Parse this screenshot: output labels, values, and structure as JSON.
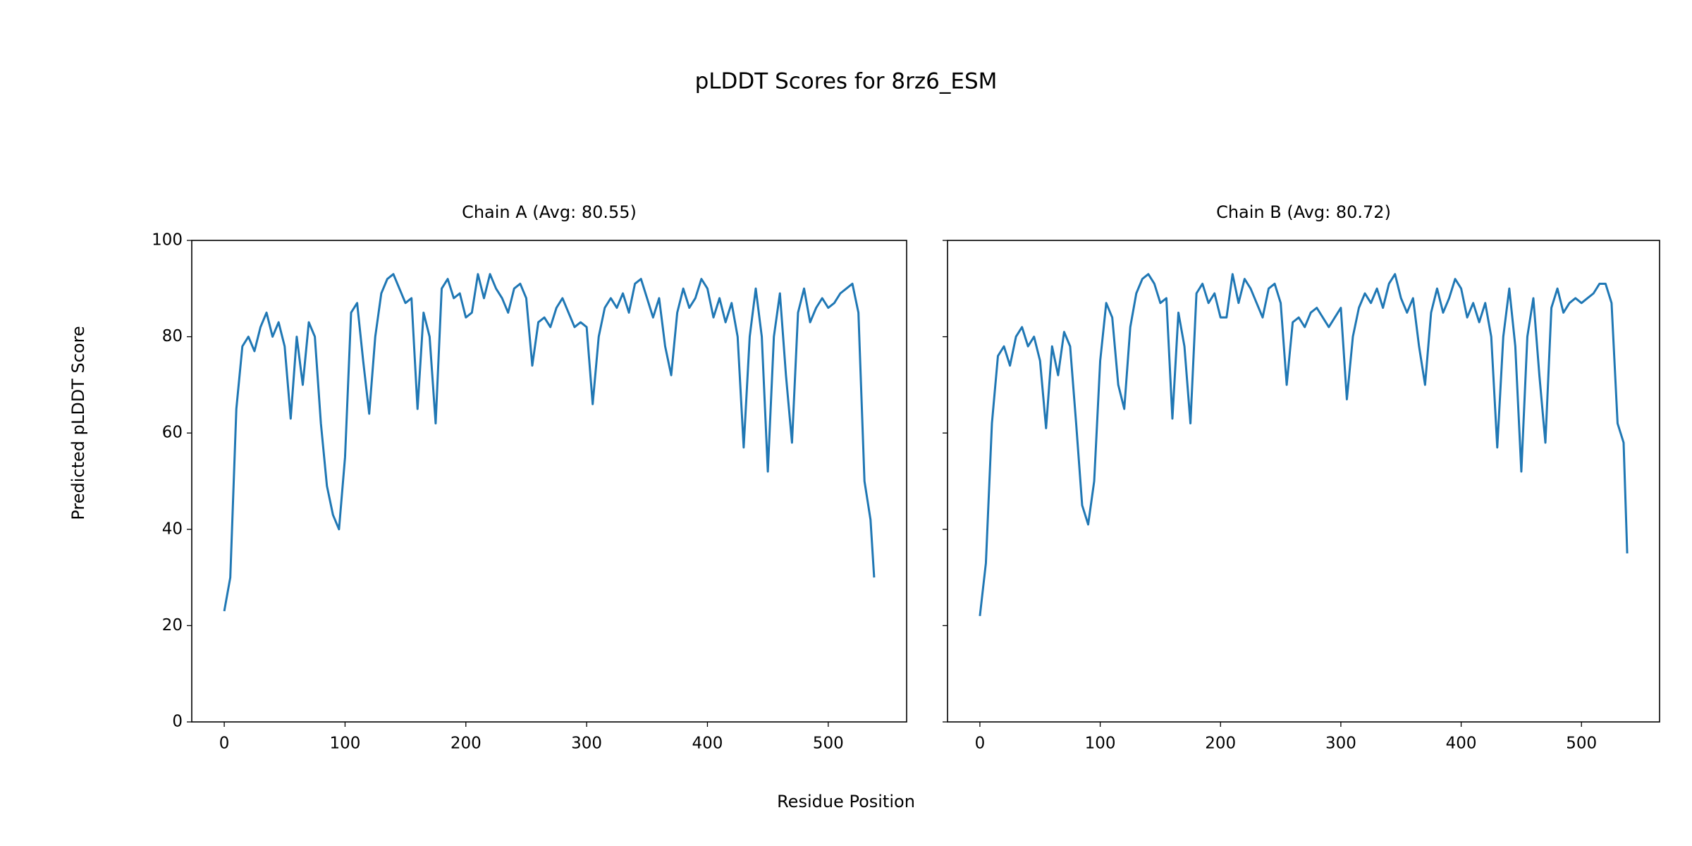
{
  "title": "pLDDT Scores for 8rz6_ESM",
  "x_label": "Residue Position",
  "y_label": "Predicted pLDDT Score",
  "chart_data": [
    {
      "type": "line",
      "title": "Chain A (Avg: 80.55)",
      "color": "#1f77b4",
      "xlim": [
        -26.9,
        564.9
      ],
      "xticks": [
        0,
        100,
        200,
        300,
        400,
        500
      ],
      "ylim": [
        0,
        100
      ],
      "yticks": [
        0,
        20,
        40,
        60,
        80,
        100
      ],
      "show_ytick_labels": true,
      "x": [
        0,
        5,
        10,
        15,
        20,
        25,
        30,
        35,
        40,
        45,
        50,
        55,
        60,
        65,
        70,
        75,
        80,
        85,
        90,
        95,
        100,
        105,
        110,
        115,
        120,
        125,
        130,
        135,
        140,
        145,
        150,
        155,
        160,
        165,
        170,
        175,
        180,
        185,
        190,
        195,
        200,
        205,
        210,
        215,
        220,
        225,
        230,
        235,
        240,
        245,
        250,
        255,
        260,
        265,
        270,
        275,
        280,
        285,
        290,
        295,
        300,
        305,
        310,
        315,
        320,
        325,
        330,
        335,
        340,
        345,
        350,
        355,
        360,
        365,
        370,
        375,
        380,
        385,
        390,
        395,
        400,
        405,
        410,
        415,
        420,
        425,
        430,
        435,
        440,
        445,
        450,
        455,
        460,
        465,
        470,
        475,
        480,
        485,
        490,
        495,
        500,
        505,
        510,
        515,
        520,
        525,
        530,
        535,
        538
      ],
      "values": [
        23,
        30,
        65,
        78,
        80,
        77,
        82,
        85,
        80,
        83,
        78,
        63,
        80,
        70,
        83,
        80,
        62,
        49,
        43,
        40,
        55,
        85,
        87,
        75,
        64,
        80,
        89,
        92,
        93,
        90,
        87,
        88,
        65,
        85,
        80,
        62,
        90,
        92,
        88,
        89,
        84,
        85,
        93,
        88,
        93,
        90,
        88,
        85,
        90,
        91,
        88,
        74,
        83,
        84,
        82,
        86,
        88,
        85,
        82,
        83,
        82,
        66,
        80,
        86,
        88,
        86,
        89,
        85,
        91,
        92,
        88,
        84,
        88,
        78,
        72,
        85,
        90,
        86,
        88,
        92,
        90,
        84,
        88,
        83,
        87,
        80,
        57,
        80,
        90,
        80,
        52,
        80,
        89,
        72,
        58,
        85,
        90,
        83,
        86,
        88,
        86,
        87,
        89,
        90,
        91,
        85,
        50,
        42,
        30
      ]
    },
    {
      "type": "line",
      "title": "Chain B (Avg: 80.72)",
      "color": "#1f77b4",
      "xlim": [
        -26.9,
        564.9
      ],
      "xticks": [
        0,
        100,
        200,
        300,
        400,
        500
      ],
      "ylim": [
        0,
        100
      ],
      "yticks": [
        0,
        20,
        40,
        60,
        80,
        100
      ],
      "show_ytick_labels": false,
      "x": [
        0,
        5,
        10,
        15,
        20,
        25,
        30,
        35,
        40,
        45,
        50,
        55,
        60,
        65,
        70,
        75,
        80,
        85,
        90,
        95,
        100,
        105,
        110,
        115,
        120,
        125,
        130,
        135,
        140,
        145,
        150,
        155,
        160,
        165,
        170,
        175,
        180,
        185,
        190,
        195,
        200,
        205,
        210,
        215,
        220,
        225,
        230,
        235,
        240,
        245,
        250,
        255,
        260,
        265,
        270,
        275,
        280,
        285,
        290,
        295,
        300,
        305,
        310,
        315,
        320,
        325,
        330,
        335,
        340,
        345,
        350,
        355,
        360,
        365,
        370,
        375,
        380,
        385,
        390,
        395,
        400,
        405,
        410,
        415,
        420,
        425,
        430,
        435,
        440,
        445,
        450,
        455,
        460,
        465,
        470,
        475,
        480,
        485,
        490,
        495,
        500,
        505,
        510,
        515,
        520,
        525,
        530,
        535,
        538
      ],
      "values": [
        22,
        33,
        62,
        76,
        78,
        74,
        80,
        82,
        78,
        80,
        75,
        61,
        78,
        72,
        81,
        78,
        62,
        45,
        41,
        50,
        75,
        87,
        84,
        70,
        65,
        82,
        89,
        92,
        93,
        91,
        87,
        88,
        63,
        85,
        78,
        62,
        89,
        91,
        87,
        89,
        84,
        84,
        93,
        87,
        92,
        90,
        87,
        84,
        90,
        91,
        87,
        70,
        83,
        84,
        82,
        85,
        86,
        84,
        82,
        84,
        86,
        67,
        80,
        86,
        89,
        87,
        90,
        86,
        91,
        93,
        88,
        85,
        88,
        78,
        70,
        85,
        90,
        85,
        88,
        92,
        90,
        84,
        87,
        83,
        87,
        80,
        57,
        80,
        90,
        78,
        52,
        80,
        88,
        72,
        58,
        86,
        90,
        85,
        87,
        88,
        87,
        88,
        89,
        91,
        91,
        87,
        62,
        58,
        35
      ]
    }
  ]
}
